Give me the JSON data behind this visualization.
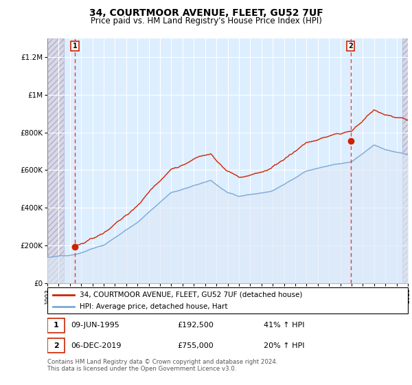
{
  "title": "34, COURTMOOR AVENUE, FLEET, GU52 7UF",
  "subtitle": "Price paid vs. HM Land Registry's House Price Index (HPI)",
  "ylim": [
    0,
    1300000
  ],
  "yticks": [
    0,
    200000,
    400000,
    600000,
    800000,
    1000000,
    1200000
  ],
  "hpi_color": "#7aa8d4",
  "hpi_fill_color": "#dce8f5",
  "price_color": "#cc2200",
  "dashed_line_color": "#ee3333",
  "hatch_face_color": "#d8d8e8",
  "hatch_edge_color": "#b0b0c8",
  "transaction1_year": 1995.45,
  "transaction1_price": 192500,
  "transaction2_year": 2019.92,
  "transaction2_price": 755000,
  "legend_property": "34, COURTMOOR AVENUE, FLEET, GU52 7UF (detached house)",
  "legend_hpi": "HPI: Average price, detached house, Hart",
  "note1_date": "09-JUN-1995",
  "note1_price": "£192,500",
  "note1_pct": "41% ↑ HPI",
  "note2_date": "06-DEC-2019",
  "note2_price": "£755,000",
  "note2_pct": "20% ↑ HPI",
  "footer": "Contains HM Land Registry data © Crown copyright and database right 2024.\nThis data is licensed under the Open Government Licence v3.0.",
  "x_start_year": 1993,
  "x_end_year": 2025,
  "chart_bg": "#ddeeff",
  "grid_color": "#ffffff"
}
